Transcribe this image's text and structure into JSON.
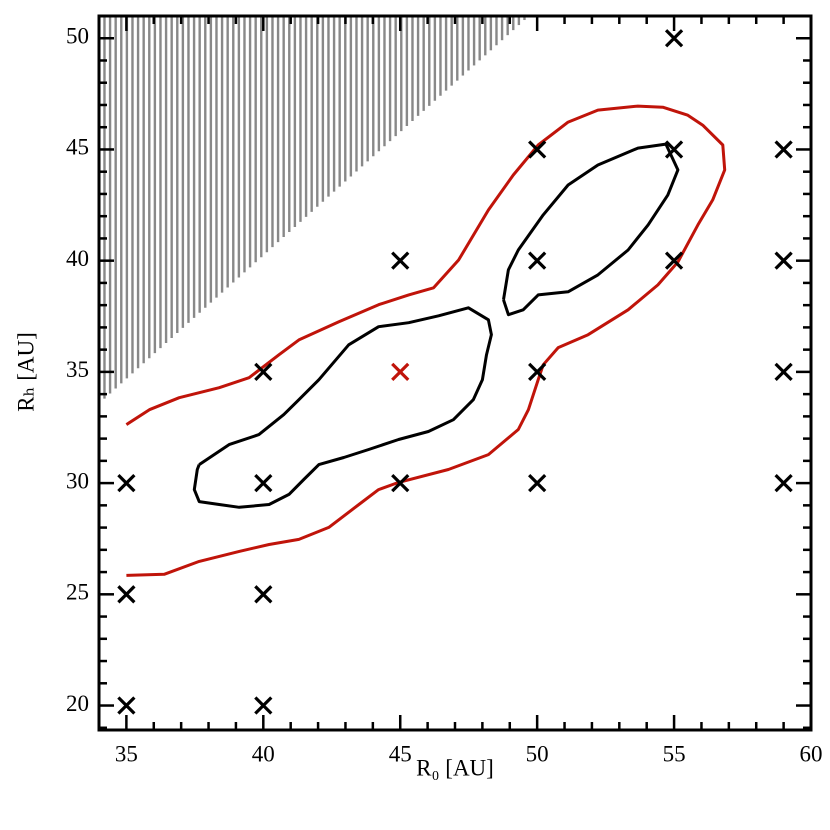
{
  "chart_data": {
    "type": "scatter",
    "xlabel": "R₀ [AU]",
    "ylabel": "Rₕ [AU]",
    "xlim": [
      34,
      60
    ],
    "ylim": [
      18.9,
      51
    ],
    "xticks": [
      35,
      40,
      45,
      50,
      55,
      60
    ],
    "yticks": [
      20,
      25,
      30,
      35,
      40,
      45,
      50
    ],
    "xminorticks": [
      34,
      36,
      37,
      38,
      39,
      41,
      42,
      43,
      44,
      46,
      47,
      48,
      49,
      51,
      52,
      53,
      54,
      56,
      57,
      58,
      59
    ],
    "yminorticks": [
      19,
      21,
      22,
      23,
      24,
      26,
      27,
      28,
      29,
      31,
      32,
      33,
      34,
      36,
      37,
      38,
      39,
      41,
      42,
      43,
      44,
      46,
      47,
      48,
      49,
      51
    ],
    "hatched_region": {
      "x": [
        34.2,
        49.7
      ],
      "y": [
        33.8,
        51
      ],
      "color": "#888888"
    },
    "markers": [
      {
        "color": "#000000",
        "x": [
          35,
          35,
          35,
          40,
          40,
          40,
          40,
          45,
          45,
          50,
          50,
          50,
          50,
          55,
          55,
          55,
          59,
          59,
          59,
          59
        ],
        "y": [
          30,
          25,
          20,
          35,
          30,
          25,
          20,
          40,
          30,
          45,
          40,
          35,
          30,
          50,
          45,
          40,
          45,
          40,
          35,
          30
        ]
      },
      {
        "color": "#c0140a",
        "x": [
          45
        ],
        "y": [
          35
        ]
      }
    ],
    "contours": [
      {
        "color": "#c0140a",
        "x": [
          35.0,
          35.84,
          36.93,
          38.39,
          39.48,
          40.57,
          41.3,
          42.76,
          44.21,
          45.31,
          46.22,
          47.13,
          48.22,
          49.13,
          50.04,
          51.13,
          52.22,
          53.68,
          54.59,
          55.5,
          56.05,
          56.78,
          56.85,
          56.41,
          55.87,
          55.14,
          54.41,
          53.32,
          51.86,
          50.77,
          50.22,
          50.04,
          49.68,
          49.31,
          48.22,
          46.76,
          44.94,
          44.21,
          43.49,
          42.39,
          41.3,
          40.21,
          39.12,
          37.66,
          36.38,
          35.0
        ],
        "y": [
          32.63,
          33.3,
          33.84,
          34.29,
          34.74,
          35.77,
          36.44,
          37.25,
          38.02,
          38.46,
          38.78,
          40.03,
          42.28,
          43.85,
          45.2,
          46.23,
          46.77,
          46.95,
          46.9,
          46.54,
          46.09,
          45.2,
          44.08,
          42.73,
          41.61,
          39.94,
          38.91,
          37.79,
          36.67,
          36.09,
          35.32,
          34.65,
          33.3,
          32.41,
          31.28,
          30.61,
          30.03,
          29.71,
          29.04,
          28.01,
          27.47,
          27.24,
          26.93,
          26.48,
          25.9,
          25.85
        ]
      },
      {
        "color": "#000000",
        "x": [
          37.66,
          38.75,
          39.84,
          40.75,
          41.3,
          42.03,
          43.12,
          44.21,
          45.31,
          46.4,
          47.49,
          48.22,
          48.33,
          48.15,
          48.0,
          47.67,
          46.94,
          46.03,
          44.94,
          43.85,
          42.94,
          42.03,
          41.48,
          40.94,
          40.21,
          39.12,
          38.39,
          37.66,
          37.48,
          37.59,
          37.66
        ],
        "y": [
          30.83,
          31.73,
          32.18,
          33.08,
          33.75,
          34.65,
          36.22,
          37.03,
          37.21,
          37.52,
          37.88,
          37.34,
          36.67,
          35.77,
          34.65,
          33.75,
          32.85,
          32.32,
          31.96,
          31.51,
          31.15,
          30.83,
          30.16,
          29.49,
          29.04,
          28.91,
          29.04,
          29.17,
          29.71,
          30.61,
          30.83
        ]
      },
      {
        "color": "#000000",
        "x": [
          48.77,
          48.95,
          49.31,
          50.22,
          51.13,
          52.22,
          53.68,
          54.7,
          55.14,
          54.77,
          54.05,
          53.32,
          52.22,
          51.13,
          50.04,
          49.49,
          48.95,
          48.77
        ],
        "y": [
          38.24,
          39.59,
          40.48,
          42.06,
          43.4,
          44.3,
          45.06,
          45.24,
          44.08,
          42.95,
          41.61,
          40.48,
          39.36,
          38.6,
          38.46,
          37.79,
          37.57,
          38.24
        ]
      }
    ]
  }
}
